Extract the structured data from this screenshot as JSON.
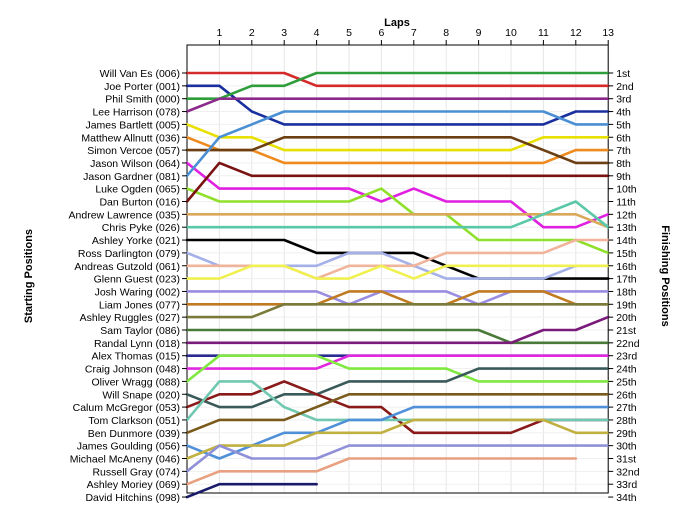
{
  "chart_data": {
    "type": "line",
    "title": "",
    "xlabel": "Laps",
    "ylabel_left": "Starting Positions",
    "ylabel_right": "Finishing Positions",
    "x": [
      0,
      1,
      2,
      3,
      4,
      5,
      6,
      7,
      8,
      9,
      10,
      11,
      12,
      13
    ],
    "x_tick_labels": [
      "1",
      "2",
      "3",
      "4",
      "5",
      "6",
      "7",
      "8",
      "9",
      "10",
      "11",
      "12",
      "13"
    ],
    "ylim": [
      1,
      34
    ],
    "y_inverted": true,
    "grid": true,
    "finish_labels": [
      "1st",
      "2nd",
      "3rd",
      "4th",
      "5th",
      "6th",
      "7th",
      "8th",
      "9th",
      "10th",
      "11th",
      "12th",
      "13th",
      "14th",
      "15th",
      "16th",
      "17th",
      "18th",
      "19th",
      "20th",
      "21st",
      "22nd",
      "23rd",
      "24th",
      "25th",
      "26th",
      "27th",
      "28th",
      "29th",
      "30th",
      "31st",
      "32nd",
      "33rd",
      "34th"
    ],
    "series": [
      {
        "name": "Will Van Es (006)",
        "color": "#d42a2a",
        "values": [
          1,
          1,
          1,
          1,
          2,
          2,
          2,
          2,
          2,
          2,
          2,
          2,
          2,
          2
        ]
      },
      {
        "name": "Joe Porter (001)",
        "color": "#1a2f9e",
        "values": [
          2,
          2,
          4,
          5,
          5,
          5,
          5,
          5,
          5,
          5,
          5,
          5,
          4,
          4
        ]
      },
      {
        "name": "Phil Smith (000)",
        "color": "#2f9e3a",
        "values": [
          3,
          3,
          2,
          2,
          1,
          1,
          1,
          1,
          1,
          1,
          1,
          1,
          1,
          1
        ]
      },
      {
        "name": "Lee Harrison (078)",
        "color": "#8c2a8c",
        "values": [
          4,
          3,
          3,
          3,
          3,
          3,
          3,
          3,
          3,
          3,
          3,
          3,
          3,
          3
        ]
      },
      {
        "name": "James Bartlett (005)",
        "color": "#e8e000",
        "values": [
          5,
          6,
          6,
          7,
          7,
          7,
          7,
          7,
          7,
          7,
          7,
          6,
          6,
          6
        ]
      },
      {
        "name": "Matthew Allnutt (036)",
        "color": "#ee8a1e",
        "values": [
          6,
          7,
          7,
          8,
          8,
          8,
          8,
          8,
          8,
          8,
          8,
          8,
          7,
          7
        ]
      },
      {
        "name": "Simon Vercoe (057)",
        "color": "#6b3f12",
        "values": [
          7,
          7,
          7,
          6,
          6,
          6,
          6,
          6,
          6,
          6,
          6,
          7,
          8,
          8
        ]
      },
      {
        "name": "Jason Wilson (064)",
        "color": "#e020e0",
        "values": [
          8,
          10,
          10,
          10,
          10,
          10,
          11,
          10,
          11,
          11,
          11,
          13,
          13,
          12
        ]
      },
      {
        "name": "Jason Gardner (081)",
        "color": "#4a8fd4",
        "values": [
          9,
          6,
          5,
          4,
          4,
          4,
          4,
          4,
          4,
          4,
          4,
          4,
          5,
          5
        ]
      },
      {
        "name": "Luke Ogden (065)",
        "color": "#8fe02a",
        "values": [
          10,
          11,
          11,
          11,
          11,
          11,
          10,
          12,
          12,
          14,
          14,
          14,
          14,
          15
        ]
      },
      {
        "name": "Dan Burton (016)",
        "color": "#7a1212",
        "values": [
          11,
          8,
          9,
          9,
          9,
          9,
          9,
          9,
          9,
          9,
          9,
          9,
          9,
          9
        ]
      },
      {
        "name": "Andrew Lawrence (035)",
        "color": "#d9a85a",
        "values": [
          12,
          12,
          12,
          12,
          12,
          12,
          12,
          12,
          12,
          12,
          12,
          12,
          12,
          13
        ]
      },
      {
        "name": "Chris Pyke (026)",
        "color": "#5ac8a8",
        "values": [
          13,
          13,
          13,
          13,
          13,
          13,
          13,
          13,
          13,
          13,
          13,
          12,
          11,
          13
        ]
      },
      {
        "name": "Ashley Yorke (021)",
        "color": "#000000",
        "values": [
          14,
          14,
          14,
          14,
          15,
          15,
          15,
          15,
          16,
          17,
          17,
          17,
          17,
          17
        ]
      },
      {
        "name": "Ross Darlington (079)",
        "color": "#a4b0e8",
        "values": [
          15,
          16,
          16,
          16,
          16,
          15,
          15,
          16,
          17,
          17,
          17,
          17,
          16,
          16
        ]
      },
      {
        "name": "Andreas Gutzold (061)",
        "color": "#f0b49a",
        "values": [
          16,
          16,
          16,
          16,
          17,
          16,
          16,
          16,
          15,
          15,
          15,
          15,
          14,
          14
        ]
      },
      {
        "name": "Glenn Guest (023)",
        "color": "#f0f050",
        "values": [
          17,
          17,
          16,
          16,
          17,
          17,
          16,
          17,
          16,
          16,
          16,
          16,
          16,
          16
        ]
      },
      {
        "name": "Josh Waring (002)",
        "color": "#9a8ce0",
        "values": [
          18,
          18,
          18,
          18,
          18,
          19,
          18,
          18,
          18,
          19,
          18,
          18,
          18,
          18
        ]
      },
      {
        "name": "Liam Jones (077)",
        "color": "#c07a20",
        "values": [
          19,
          19,
          19,
          19,
          19,
          18,
          18,
          19,
          19,
          18,
          18,
          18,
          19,
          19
        ]
      },
      {
        "name": "Ashley Ruggles (027)",
        "color": "#7a7a3a",
        "values": [
          20,
          20,
          20,
          19,
          19,
          19,
          19,
          19,
          19,
          19,
          19,
          19,
          19,
          19
        ]
      },
      {
        "name": "Sam Taylor (086)",
        "color": "#4a7a3a",
        "values": [
          21,
          21,
          21,
          21,
          21,
          21,
          21,
          21,
          21,
          21,
          22,
          22,
          22,
          22
        ]
      },
      {
        "name": "Randal Lynn (018)",
        "color": "#7a1a7a",
        "values": [
          22,
          22,
          22,
          22,
          22,
          22,
          22,
          22,
          22,
          22,
          22,
          21,
          21,
          20
        ]
      },
      {
        "name": "Alex Thomas (015)",
        "color": "#2a2a90",
        "values": [
          23,
          23,
          23,
          23,
          23,
          23,
          23,
          23,
          23,
          23,
          23,
          23,
          23,
          23
        ]
      },
      {
        "name": "Craig Johnson (048)",
        "color": "#e028e0",
        "values": [
          24,
          24,
          24,
          24,
          24,
          23,
          23,
          23,
          23,
          23,
          23,
          23,
          23,
          23
        ]
      },
      {
        "name": "Oliver Wragg (088)",
        "color": "#80e840",
        "values": [
          25,
          23,
          23,
          23,
          23,
          24,
          24,
          24,
          24,
          25,
          25,
          25,
          25,
          25
        ]
      },
      {
        "name": "Will Snape (020)",
        "color": "#3a5a5a",
        "values": [
          26,
          27,
          27,
          26,
          26,
          25,
          25,
          25,
          25,
          24,
          24,
          24,
          24,
          24
        ]
      },
      {
        "name": "Calum McGregor (053)",
        "color": "#8a1a1a",
        "values": [
          27,
          26,
          26,
          25,
          26,
          27,
          27,
          29,
          29,
          29,
          29,
          28,
          28,
          28
        ]
      },
      {
        "name": "Tom Clarkson (051)",
        "color": "#70c8b0",
        "values": [
          28,
          25,
          25,
          27,
          28,
          28,
          28,
          28,
          28,
          28,
          28,
          28,
          28,
          28
        ]
      },
      {
        "name": "Ben Dunmore (039)",
        "color": "#7a5a1a",
        "values": [
          29,
          28,
          28,
          28,
          27,
          26,
          26,
          26,
          26,
          26,
          26,
          26,
          26,
          26
        ]
      },
      {
        "name": "James Goulding (056)",
        "color": "#5090d8",
        "values": [
          30,
          31,
          30,
          29,
          29,
          28,
          28,
          27,
          27,
          27,
          27,
          27,
          27,
          27
        ]
      },
      {
        "name": "Michael McAneny (046)",
        "color": "#c0b040",
        "values": [
          31,
          30,
          30,
          30,
          29,
          29,
          29,
          28,
          28,
          28,
          28,
          28,
          29,
          29
        ]
      },
      {
        "name": "Russell Gray (074)",
        "color": "#9090d8",
        "values": [
          32,
          30,
          31,
          31,
          31,
          30,
          30,
          30,
          30,
          30,
          30,
          30,
          30,
          30
        ]
      },
      {
        "name": "Ashley Moriey (069)",
        "color": "#e8a080",
        "values": [
          33,
          32,
          32,
          32,
          32,
          31,
          31,
          31,
          31,
          31,
          31,
          31,
          31,
          null
        ]
      },
      {
        "name": "David Hitchins (098)",
        "color": "#1a1a6a",
        "values": [
          34,
          33,
          33,
          33,
          33,
          null,
          null,
          null,
          null,
          null,
          null,
          null,
          null,
          null
        ]
      }
    ]
  }
}
